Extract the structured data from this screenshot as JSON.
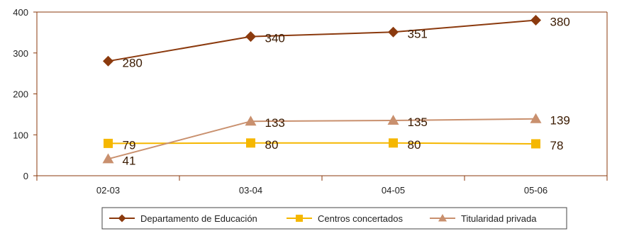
{
  "chart_data": {
    "type": "line",
    "categories": [
      "02-03",
      "03-04",
      "04-05",
      "05-06"
    ],
    "ylim": [
      0,
      400
    ],
    "yticks": [
      0,
      100,
      200,
      300,
      400
    ],
    "grid": false,
    "legend_position": "bottom",
    "series": [
      {
        "name": "Departamento de Educación",
        "values": [
          280,
          340,
          351,
          380
        ],
        "color": "#8B3A0E",
        "marker": "diamond"
      },
      {
        "name": "Centros concertados",
        "values": [
          79,
          80,
          80,
          78
        ],
        "color": "#F5B700",
        "marker": "square"
      },
      {
        "name": "Titularidad privada",
        "values": [
          41,
          133,
          135,
          139
        ],
        "color": "#C9906E",
        "marker": "triangle"
      }
    ]
  }
}
